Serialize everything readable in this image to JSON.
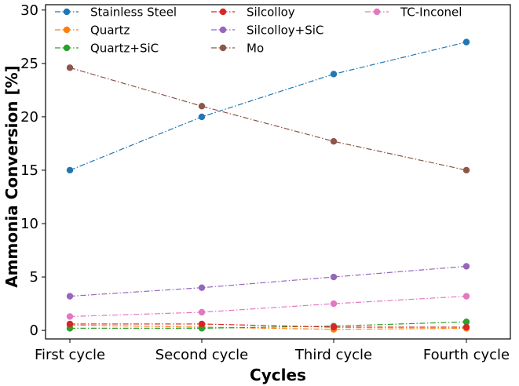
{
  "chart_data": {
    "type": "line",
    "categories": [
      "First cycle",
      "Second cycle",
      "Third cycle",
      "Fourth cycle"
    ],
    "xlabel": "Cycles",
    "ylabel": "Ammonia Conversion [%]",
    "ylim": [
      -0.8,
      30.5
    ],
    "yticks": [
      0,
      5,
      10,
      15,
      20,
      25,
      30
    ],
    "grid": false,
    "legend_position": "top",
    "legend_columns": 3,
    "line_style": "dash-dot with circle markers",
    "series": [
      {
        "name": "Stainless Steel",
        "color": "#1f77b4",
        "values": [
          15.0,
          20.0,
          24.0,
          27.0
        ]
      },
      {
        "name": "Quartz",
        "color": "#ff7f0e",
        "values": [
          0.5,
          0.3,
          0.1,
          0.2
        ]
      },
      {
        "name": "Quartz+SiC",
        "color": "#2ca02c",
        "values": [
          0.2,
          0.2,
          0.4,
          0.8
        ]
      },
      {
        "name": "Silcolloy",
        "color": "#d62728",
        "values": [
          0.6,
          0.6,
          0.3,
          0.3
        ]
      },
      {
        "name": "Silcolloy+SiC",
        "color": "#9467bd",
        "values": [
          3.2,
          4.0,
          5.0,
          6.0
        ]
      },
      {
        "name": "Mo",
        "color": "#8c564b",
        "values": [
          24.6,
          21.0,
          17.7,
          15.0
        ]
      },
      {
        "name": "TC-Inconel",
        "color": "#e377c2",
        "values": [
          1.3,
          1.7,
          2.5,
          3.2
        ]
      }
    ]
  }
}
